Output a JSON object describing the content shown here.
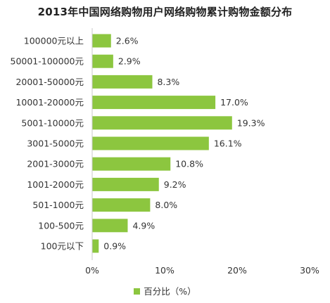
{
  "chart_data": {
    "type": "bar",
    "orientation": "horizontal",
    "title": "2013年中国网络购物用户网络购物累计购物金额分布",
    "categories": [
      "100000元以上",
      "50001-100000元",
      "20001-50000元",
      "10001-20000元",
      "5001-10000元",
      "3001-5000元",
      "2001-3000元",
      "1001-2000元",
      "501-1000元",
      "100-500元",
      "100元以下"
    ],
    "series": [
      {
        "name": "百分比（%）",
        "values": [
          2.6,
          2.9,
          8.3,
          17.0,
          19.3,
          16.1,
          10.8,
          9.2,
          8.0,
          4.9,
          0.9
        ],
        "labels": [
          "2.6%",
          "2.9%",
          "8.3%",
          "17.0%",
          "19.3%",
          "16.1%",
          "10.8%",
          "9.2%",
          "8.0%",
          "4.9%",
          "0.9%"
        ]
      }
    ],
    "xlim": [
      0,
      30
    ],
    "xticks": [
      0,
      10,
      20,
      30
    ],
    "xtick_labels": [
      "0%",
      "10%",
      "20%",
      "30%"
    ],
    "grid": false,
    "legend_position": "bottom",
    "bar_color": "#8cc63f"
  }
}
